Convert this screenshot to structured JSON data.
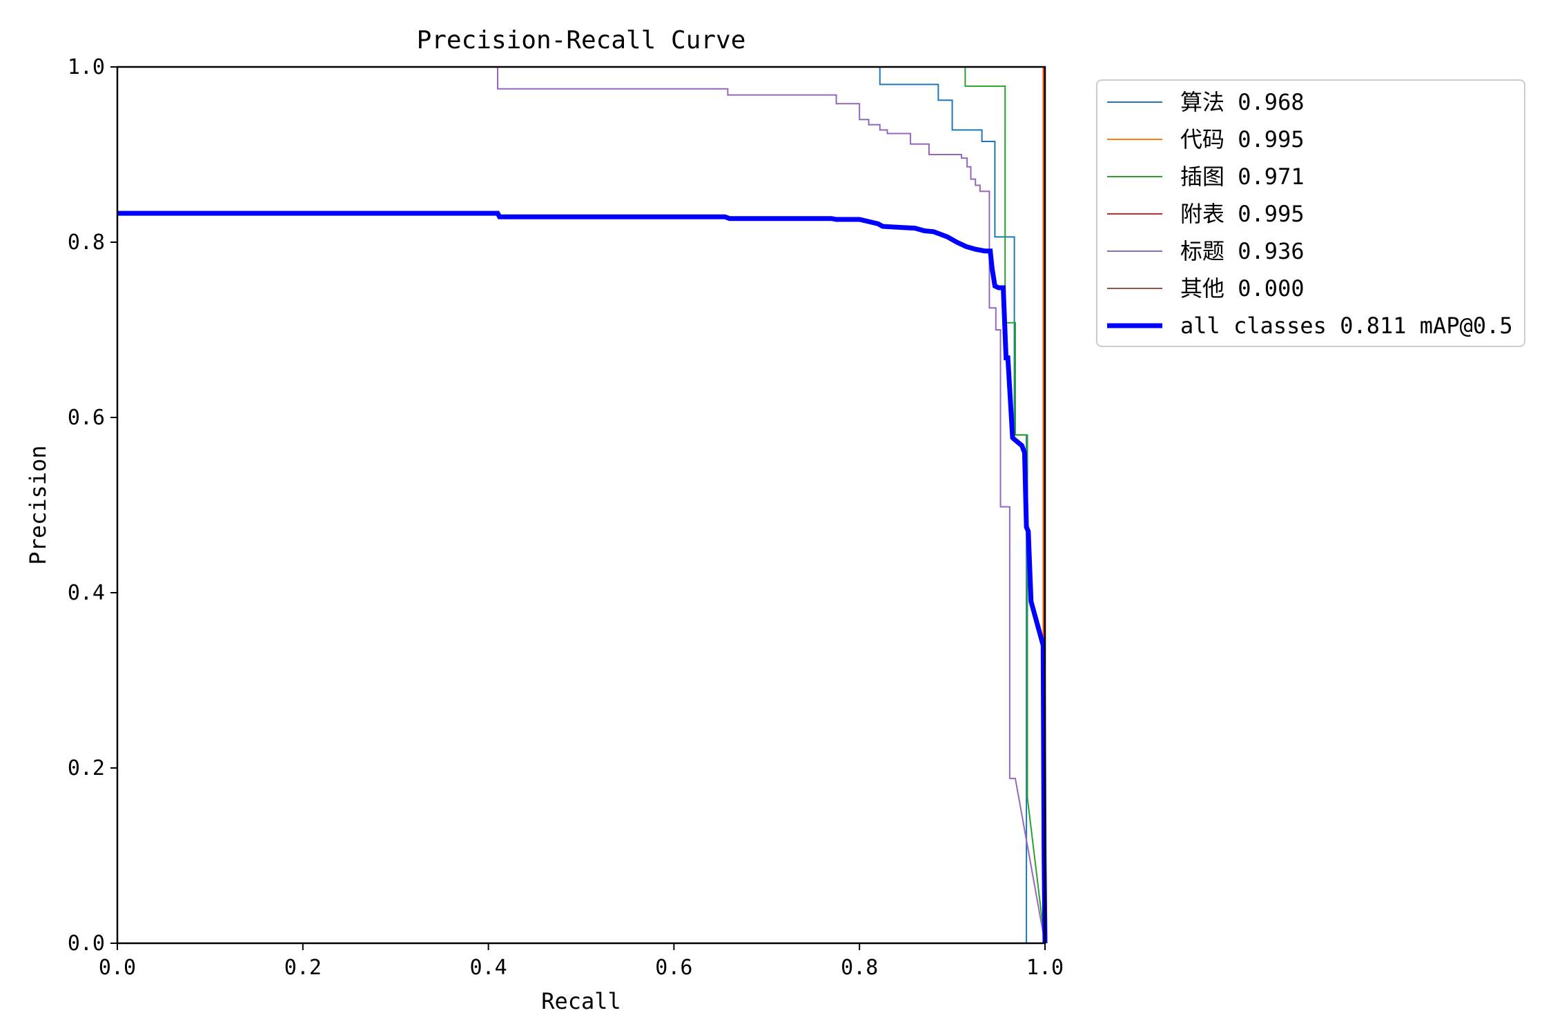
{
  "chart_data": {
    "type": "line",
    "title": "Precision-Recall Curve",
    "xlabel": "Recall",
    "ylabel": "Precision",
    "xlim": [
      0,
      1
    ],
    "ylim": [
      0,
      1
    ],
    "x_ticks": [
      "0.0",
      "0.2",
      "0.4",
      "0.6",
      "0.8",
      "1.0"
    ],
    "y_ticks": [
      "0.0",
      "0.2",
      "0.4",
      "0.6",
      "0.8",
      "1.0"
    ],
    "grid": false,
    "legend_position": "outside-top-right",
    "series": [
      {
        "name": "算法 0.968",
        "color": "#1f77b4",
        "width": 2,
        "x": [
          0,
          0.822,
          0.822,
          0.885,
          0.885,
          0.9,
          0.9,
          0.932,
          0.932,
          0.946,
          0.946,
          0.967,
          0.967,
          0.98,
          0.98,
          1.0
        ],
        "y": [
          1.0,
          1.0,
          0.98,
          0.98,
          0.962,
          0.962,
          0.928,
          0.928,
          0.915,
          0.915,
          0.806,
          0.806,
          0.58,
          0.58,
          0.0,
          0.0
        ]
      },
      {
        "name": "代码 0.995",
        "color": "#ff7f0e",
        "width": 2,
        "x": [
          0,
          0.998,
          0.998,
          1.0
        ],
        "y": [
          1.0,
          1.0,
          0.35,
          0.0
        ]
      },
      {
        "name": "插图 0.971",
        "color": "#2ca02c",
        "width": 2,
        "x": [
          0,
          0.914,
          0.914,
          0.957,
          0.957,
          0.968,
          0.968,
          0.981,
          0.981,
          0.984,
          1.0
        ],
        "y": [
          1.0,
          1.0,
          0.978,
          0.978,
          0.708,
          0.708,
          0.58,
          0.58,
          0.166,
          0.14,
          0.0
        ]
      },
      {
        "name": "附表 0.995",
        "color": "#d62728",
        "width": 2,
        "x": [
          0,
          0.999,
          0.999,
          1.0
        ],
        "y": [
          1.0,
          1.0,
          0.35,
          0.0
        ]
      },
      {
        "name": "标题 0.936",
        "color": "#9467bd",
        "width": 2,
        "x": [
          0,
          0.41,
          0.41,
          0.658,
          0.658,
          0.775,
          0.775,
          0.8,
          0.8,
          0.81,
          0.81,
          0.822,
          0.822,
          0.83,
          0.83,
          0.855,
          0.855,
          0.875,
          0.875,
          0.91,
          0.91,
          0.916,
          0.916,
          0.92,
          0.92,
          0.925,
          0.925,
          0.93,
          0.93,
          0.94,
          0.94,
          0.947,
          0.947,
          0.952,
          0.952,
          0.962,
          0.962,
          0.968,
          1.0
        ],
        "y": [
          1.0,
          1.0,
          0.975,
          0.975,
          0.968,
          0.968,
          0.958,
          0.958,
          0.94,
          0.94,
          0.934,
          0.934,
          0.928,
          0.928,
          0.924,
          0.924,
          0.912,
          0.912,
          0.9,
          0.9,
          0.896,
          0.896,
          0.886,
          0.886,
          0.872,
          0.872,
          0.865,
          0.865,
          0.858,
          0.858,
          0.725,
          0.725,
          0.7,
          0.7,
          0.498,
          0.498,
          0.188,
          0.188,
          0.0
        ]
      },
      {
        "name": "其他 0.000",
        "color": "#8c564b",
        "width": 2,
        "x": [
          0,
          1.0,
          1.0
        ],
        "y": [
          1.0,
          1.0,
          0.0
        ]
      },
      {
        "name": "all classes 0.811 mAP@0.5",
        "color": "#0000ff",
        "width": 7,
        "x": [
          0,
          0.41,
          0.412,
          0.655,
          0.66,
          0.77,
          0.775,
          0.8,
          0.82,
          0.825,
          0.86,
          0.87,
          0.88,
          0.895,
          0.905,
          0.915,
          0.925,
          0.935,
          0.941,
          0.943,
          0.946,
          0.95,
          0.955,
          0.958,
          0.96,
          0.965,
          0.967,
          0.975,
          0.978,
          0.98,
          0.982,
          0.985,
          0.998,
          0.999,
          1.0
        ],
        "y": [
          0.833,
          0.833,
          0.829,
          0.829,
          0.827,
          0.827,
          0.826,
          0.826,
          0.821,
          0.818,
          0.816,
          0.813,
          0.812,
          0.806,
          0.8,
          0.795,
          0.792,
          0.79,
          0.79,
          0.77,
          0.75,
          0.748,
          0.748,
          0.668,
          0.668,
          0.577,
          0.575,
          0.568,
          0.56,
          0.475,
          0.47,
          0.39,
          0.34,
          0.1,
          0.0
        ]
      }
    ]
  }
}
